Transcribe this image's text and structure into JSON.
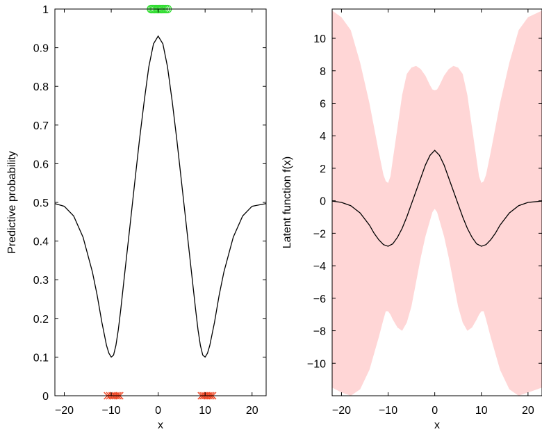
{
  "chart_data": [
    {
      "type": "line",
      "xlabel": "x",
      "ylabel": "Predictive probability",
      "xlim": [
        -22,
        23
      ],
      "ylim": [
        0,
        1
      ],
      "x_ticks": [
        "−20",
        "−10",
        "0",
        "10",
        "20"
      ],
      "x_tick_values": [
        -20,
        -10,
        0,
        10,
        20
      ],
      "y_ticks": [
        "0",
        "0.1",
        "0.2",
        "0.3",
        "0.4",
        "0.5",
        "0.6",
        "0.7",
        "0.8",
        "0.9",
        "1"
      ],
      "y_tick_values": [
        0,
        0.1,
        0.2,
        0.3,
        0.4,
        0.5,
        0.6,
        0.7,
        0.8,
        0.9,
        1
      ],
      "grid": false,
      "series": [
        {
          "style": "line",
          "color": "#000000",
          "x": [
            -22,
            -20,
            -18,
            -16,
            -14,
            -13,
            -12,
            -11,
            -10.5,
            -10,
            -9.5,
            -9,
            -8.5,
            -8,
            -7,
            -6,
            -5,
            -4,
            -3,
            -2,
            -1,
            0,
            1,
            2,
            3,
            4,
            5,
            6,
            7,
            8,
            8.5,
            9,
            9.5,
            10,
            10.5,
            11,
            12,
            13,
            14,
            16,
            18,
            20,
            23
          ],
          "y": [
            0.497,
            0.49,
            0.465,
            0.41,
            0.32,
            0.26,
            0.19,
            0.13,
            0.11,
            0.1,
            0.105,
            0.13,
            0.17,
            0.22,
            0.33,
            0.44,
            0.55,
            0.66,
            0.76,
            0.85,
            0.91,
            0.93,
            0.91,
            0.85,
            0.76,
            0.66,
            0.55,
            0.44,
            0.33,
            0.22,
            0.17,
            0.13,
            0.105,
            0.1,
            0.11,
            0.13,
            0.19,
            0.26,
            0.32,
            0.41,
            0.465,
            0.49,
            0.497
          ]
        },
        {
          "style": "marker-o",
          "color": "#33dd33",
          "x": [
            -1.5,
            -1.2,
            -0.9,
            -0.6,
            -0.3,
            0,
            0.3,
            0.6,
            0.9,
            1.2,
            1.6,
            2.0
          ],
          "y": [
            1,
            1,
            1,
            1,
            1,
            1,
            1,
            1,
            1,
            1,
            1,
            1
          ]
        },
        {
          "style": "marker-x",
          "color": "#ee4422",
          "x": [
            -10.8,
            -10.3,
            -9.8,
            -9.4,
            -9.0,
            -8.6,
            -8.2,
            9.2,
            9.6,
            10.0,
            10.4,
            10.8,
            11.2,
            11.6
          ],
          "y": [
            0,
            0,
            0,
            0,
            0,
            0,
            0,
            0,
            0,
            0,
            0,
            0,
            0,
            0
          ]
        }
      ]
    },
    {
      "type": "area",
      "xlabel": "x",
      "ylabel": "Latent function f(x)",
      "xlim": [
        -22,
        23
      ],
      "ylim": [
        -12,
        11.8
      ],
      "x_ticks": [
        "−20",
        "−10",
        "0",
        "10",
        "20"
      ],
      "x_tick_values": [
        -20,
        -10,
        0,
        10,
        20
      ],
      "y_ticks": [
        "−10",
        "−8",
        "−6",
        "−4",
        "−2",
        "0",
        "2",
        "4",
        "6",
        "8",
        "10"
      ],
      "y_tick_values": [
        -10,
        -8,
        -6,
        -4,
        -2,
        0,
        2,
        4,
        6,
        8,
        10
      ],
      "grid": false,
      "series": [
        {
          "style": "band",
          "color": "#ffd6d6",
          "x": [
            -22,
            -20,
            -18,
            -16,
            -14,
            -12,
            -11,
            -10.5,
            -10,
            -9.5,
            -9,
            -8,
            -7,
            -6,
            -5,
            -4,
            -3,
            -2,
            -1,
            -0.5,
            0,
            0.5,
            1,
            2,
            3,
            4,
            5,
            6,
            7,
            8,
            9,
            9.5,
            10,
            10.5,
            11,
            12,
            14,
            16,
            18,
            20,
            23
          ],
          "upper": [
            11.7,
            11.3,
            10.5,
            8.5,
            6.0,
            3.0,
            1.6,
            1.2,
            1.1,
            1.5,
            2.5,
            4.5,
            6.5,
            7.8,
            8.2,
            8.3,
            8.1,
            7.7,
            7.1,
            6.85,
            6.8,
            6.85,
            7.1,
            7.7,
            8.1,
            8.3,
            8.2,
            7.8,
            6.5,
            4.5,
            2.5,
            1.5,
            1.1,
            1.2,
            1.6,
            3.0,
            6.0,
            8.5,
            10.5,
            11.3,
            11.7
          ],
          "lower": [
            -11.5,
            -11.8,
            -12,
            -11.6,
            -10.4,
            -8.4,
            -7.3,
            -6.8,
            -6.8,
            -7.0,
            -7.3,
            -7.8,
            -8.0,
            -7.5,
            -6.5,
            -5.0,
            -3.5,
            -2.2,
            -1.2,
            -0.7,
            -0.5,
            -0.7,
            -1.2,
            -2.2,
            -3.5,
            -5.0,
            -6.5,
            -7.5,
            -8.0,
            -7.8,
            -7.3,
            -7.0,
            -6.8,
            -6.8,
            -7.3,
            -8.4,
            -10.4,
            -11.6,
            -12,
            -11.8,
            -11.5
          ]
        },
        {
          "style": "line",
          "color": "#000000",
          "x": [
            -22,
            -20,
            -18,
            -16,
            -14,
            -13,
            -12,
            -11,
            -10,
            -9,
            -8,
            -7,
            -6,
            -5,
            -4,
            -3,
            -2,
            -1,
            0,
            1,
            2,
            3,
            4,
            5,
            6,
            7,
            8,
            9,
            10,
            11,
            12,
            13,
            14,
            16,
            18,
            20,
            23
          ],
          "y": [
            -0.02,
            -0.1,
            -0.3,
            -0.75,
            -1.5,
            -2.0,
            -2.4,
            -2.7,
            -2.8,
            -2.65,
            -2.25,
            -1.7,
            -1.0,
            -0.2,
            0.6,
            1.4,
            2.2,
            2.8,
            3.1,
            2.8,
            2.2,
            1.4,
            0.6,
            -0.2,
            -1.0,
            -1.7,
            -2.25,
            -2.65,
            -2.8,
            -2.7,
            -2.4,
            -2.0,
            -1.5,
            -0.75,
            -0.3,
            -0.1,
            -0.02
          ]
        }
      ]
    }
  ]
}
